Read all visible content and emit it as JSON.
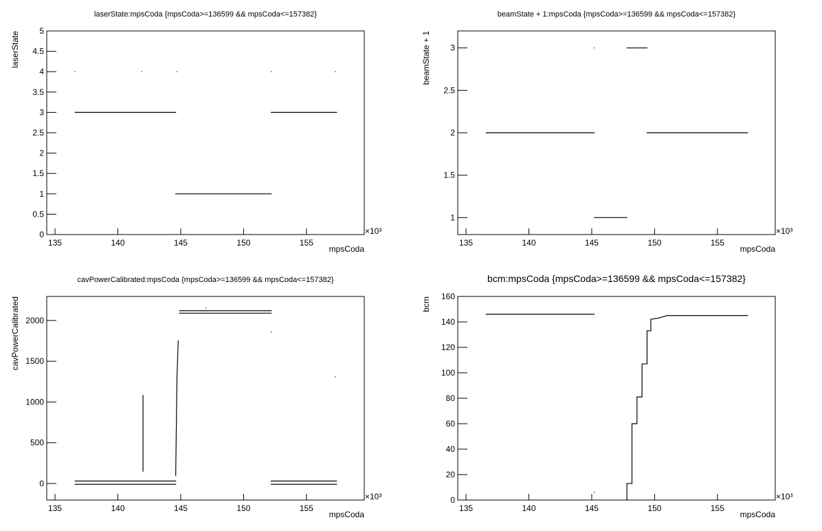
{
  "chart_data": [
    {
      "type": "line",
      "title": "laserState:mpsCoda {mpsCoda>=136599 && mpsCoda<=157382}",
      "x_label": "mpsCoda",
      "y_label": "laserState",
      "x_multiplier": "×10³",
      "xlim": [
        134.34,
        159.6
      ],
      "xticks": [
        135,
        140,
        145,
        150,
        155
      ],
      "ylim": [
        0,
        5
      ],
      "yticks": [
        0,
        0.5,
        1,
        1.5,
        2,
        2.5,
        3,
        3.5,
        4,
        4.5,
        5
      ],
      "series": [
        {
          "color": "#000000",
          "x": [
            136.6,
            144.6,
            null,
            144.6,
            152.2,
            null,
            152.2,
            157.4,
            null,
            136.6,
            null,
            141.9,
            null,
            144.7,
            null,
            152.2,
            null,
            157.3
          ],
          "values": [
            3,
            3,
            null,
            1,
            1,
            null,
            3,
            3,
            null,
            4,
            null,
            4,
            null,
            4,
            null,
            4,
            null,
            4
          ]
        }
      ]
    },
    {
      "type": "line",
      "title": "beamState + 1:mpsCoda {mpsCoda>=136599 && mpsCoda<=157382}",
      "x_label": "mpsCoda",
      "y_label": "beamState + 1",
      "x_multiplier": "×10³",
      "xlim": [
        134.34,
        159.6
      ],
      "xticks": [
        135,
        140,
        145,
        150,
        155
      ],
      "ylim": [
        0.8,
        3.2
      ],
      "yticks": [
        1,
        1.5,
        2,
        2.5,
        3
      ],
      "series": [
        {
          "color": "#000000",
          "x": [
            136.6,
            145.2,
            null,
            145.2,
            147.8,
            null,
            147.8,
            149.4,
            null,
            149.4,
            157.4,
            null,
            145.2
          ],
          "values": [
            2,
            2,
            null,
            1,
            1,
            null,
            3,
            3,
            null,
            2,
            2,
            null,
            3
          ]
        }
      ]
    },
    {
      "type": "line",
      "title": "cavPowerCalibrated:mpsCoda {mpsCoda>=136599 && mpsCoda<=157382}",
      "x_label": "mpsCoda",
      "y_label": "cavPowerCalibrated",
      "x_multiplier": "×10³",
      "xlim": [
        134.34,
        159.6
      ],
      "xticks": [
        135,
        140,
        145,
        150,
        155
      ],
      "ylim": [
        -203,
        2295
      ],
      "yticks": [
        0,
        500,
        1000,
        1500,
        2000
      ],
      "series": [
        {
          "color": "#000000",
          "x": [
            136.6,
            144.6,
            null,
            136.6,
            144.6,
            null,
            152.2,
            157.4,
            null,
            152.2,
            157.4,
            null,
            144.9,
            152.2,
            null,
            144.9,
            152.2,
            null,
            142,
            142,
            null,
            144.6,
            144.7,
            144.8,
            null,
            147,
            null,
            152.2,
            null,
            157.3
          ],
          "values": [
            30,
            30,
            null,
            -10,
            -10,
            null,
            30,
            30,
            null,
            -10,
            -10,
            null,
            2120,
            2120,
            null,
            2090,
            2090,
            null,
            150,
            1080,
            null,
            100,
            1300,
            1750,
            null,
            2150,
            null,
            1860,
            null,
            1310
          ]
        }
      ]
    },
    {
      "type": "line",
      "title": "bcm:mpsCoda {mpsCoda>=136599 && mpsCoda<=157382}",
      "x_label": "mpsCoda",
      "y_label": "bcm",
      "x_multiplier": "×10³",
      "xlim": [
        134.34,
        159.6
      ],
      "xticks": [
        135,
        140,
        145,
        150,
        155
      ],
      "ylim": [
        0,
        160
      ],
      "yticks": [
        0,
        20,
        40,
        60,
        80,
        100,
        120,
        140,
        160
      ],
      "series": [
        {
          "color": "#000000",
          "x": [
            136.6,
            145.2,
            null,
            145.2,
            null,
            147.8,
            147.8,
            148.2,
            148.2,
            148.6,
            148.6,
            149,
            149,
            149.4,
            149.4,
            149.7,
            149.7,
            150.3,
            151,
            157.4
          ],
          "values": [
            146,
            146,
            null,
            6,
            null,
            0,
            13,
            13,
            60,
            60,
            81,
            81,
            107,
            107,
            133,
            133,
            142,
            143,
            145,
            145
          ]
        }
      ]
    }
  ]
}
